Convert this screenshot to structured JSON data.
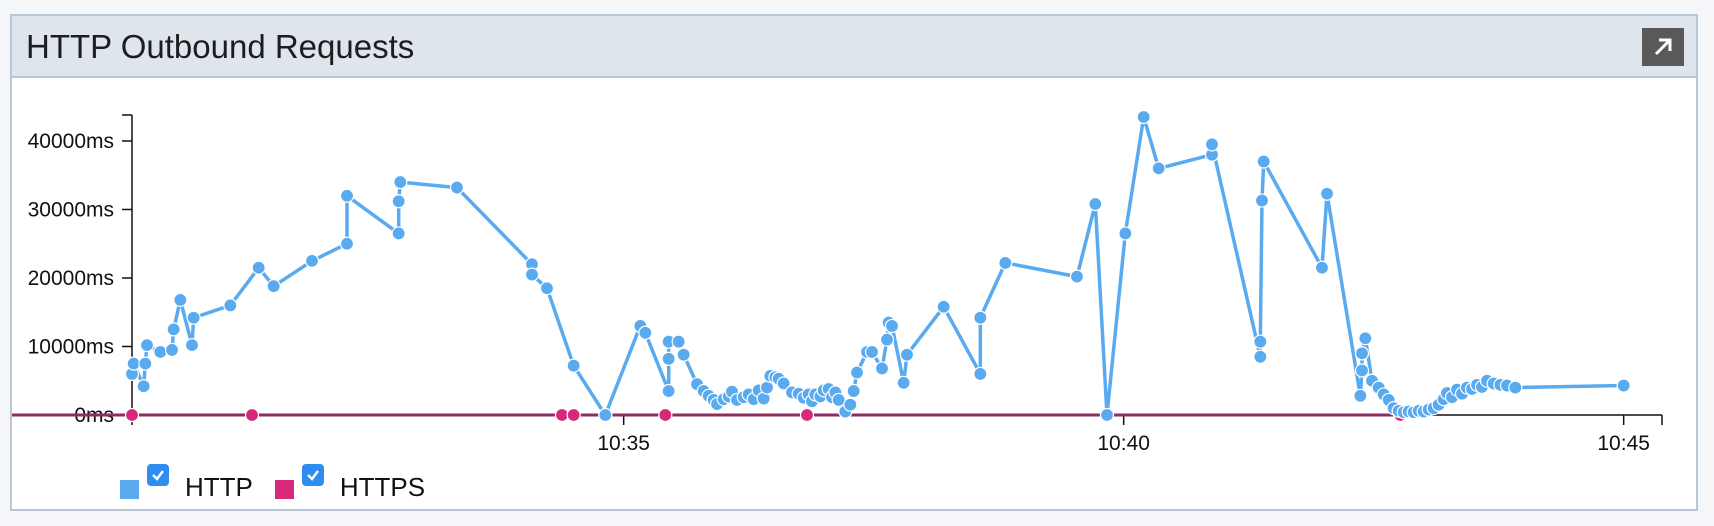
{
  "panel": {
    "title": "HTTP Outbound Requests",
    "expand_icon": "arrow-up-right-icon"
  },
  "chart_data": {
    "type": "scatter",
    "title": "HTTP Outbound Requests",
    "xlabel": "",
    "ylabel": "",
    "x_ticks": [
      "10:35",
      "10:40",
      "10:45"
    ],
    "y_ticks": [
      "0ms",
      "10000ms",
      "20000ms",
      "30000ms",
      "40000ms"
    ],
    "xlim": [
      "10:30:05",
      "10:45:23"
    ],
    "ylim": [
      0,
      43500
    ],
    "grid": false,
    "legend_position": "bottom-left",
    "series": [
      {
        "name": "HTTP",
        "color": "#5aaaf0",
        "points": [
          [
            "10:30:05",
            6000
          ],
          [
            "10:30:06",
            7500
          ],
          [
            "10:30:12",
            4200
          ],
          [
            "10:30:13",
            7500
          ],
          [
            "10:30:14",
            10200
          ],
          [
            "10:30:22",
            9200
          ],
          [
            "10:30:29",
            9500
          ],
          [
            "10:30:30",
            12500
          ],
          [
            "10:30:34",
            16800
          ],
          [
            "10:30:41",
            10200
          ],
          [
            "10:30:42",
            14200
          ],
          [
            "10:31:04",
            16000
          ],
          [
            "10:31:21",
            21500
          ],
          [
            "10:31:30",
            18800
          ],
          [
            "10:31:53",
            22500
          ],
          [
            "10:32:14",
            25000
          ],
          [
            "10:32:14",
            32000
          ],
          [
            "10:32:45",
            26500
          ],
          [
            "10:32:45",
            31200
          ],
          [
            "10:32:46",
            34000
          ],
          [
            "10:33:20",
            33200
          ],
          [
            "10:34:05",
            22000
          ],
          [
            "10:34:05",
            20500
          ],
          [
            "10:34:14",
            18500
          ],
          [
            "10:34:30",
            7200
          ],
          [
            "10:34:49",
            0
          ],
          [
            "10:35:10",
            13000
          ],
          [
            "10:35:13",
            12000
          ],
          [
            "10:35:27",
            3500
          ],
          [
            "10:35:27",
            8200
          ],
          [
            "10:35:27",
            10700
          ],
          [
            "10:35:33",
            10700
          ],
          [
            "10:35:36",
            8800
          ],
          [
            "10:35:44",
            4500
          ],
          [
            "10:35:48",
            3500
          ],
          [
            "10:35:51",
            2800
          ],
          [
            "10:35:54",
            2200
          ],
          [
            "10:35:56",
            1600
          ],
          [
            "10:36:00",
            2300
          ],
          [
            "10:36:03",
            2700
          ],
          [
            "10:36:05",
            3400
          ],
          [
            "10:36:08",
            2200
          ],
          [
            "10:36:12",
            2600
          ],
          [
            "10:36:15",
            3000
          ],
          [
            "10:36:18",
            2300
          ],
          [
            "10:36:21",
            3600
          ],
          [
            "10:36:24",
            2400
          ],
          [
            "10:36:26",
            4000
          ],
          [
            "10:36:28",
            5700
          ],
          [
            "10:36:31",
            5500
          ],
          [
            "10:36:33",
            5300
          ],
          [
            "10:36:36",
            4600
          ],
          [
            "10:36:41",
            3300
          ],
          [
            "10:36:45",
            3100
          ],
          [
            "10:36:48",
            2500
          ],
          [
            "10:36:51",
            3000
          ],
          [
            "10:36:53",
            2000
          ],
          [
            "10:36:55",
            3000
          ],
          [
            "10:36:58",
            2700
          ],
          [
            "10:37:00",
            3600
          ],
          [
            "10:37:03",
            3800
          ],
          [
            "10:37:05",
            2600
          ],
          [
            "10:37:07",
            3300
          ],
          [
            "10:37:09",
            2200
          ],
          [
            "10:37:13",
            500
          ],
          [
            "10:37:16",
            1500
          ],
          [
            "10:37:18",
            3500
          ],
          [
            "10:37:20",
            6200
          ],
          [
            "10:37:26",
            9200
          ],
          [
            "10:37:29",
            9200
          ],
          [
            "10:37:35",
            6800
          ],
          [
            "10:37:38",
            11000
          ],
          [
            "10:37:39",
            13500
          ],
          [
            "10:37:41",
            13000
          ],
          [
            "10:37:48",
            4700
          ],
          [
            "10:37:50",
            8800
          ],
          [
            "10:38:12",
            15800
          ],
          [
            "10:38:34",
            6000
          ],
          [
            "10:38:34",
            14200
          ],
          [
            "10:38:49",
            22200
          ],
          [
            "10:39:32",
            20200
          ],
          [
            "10:39:43",
            30800
          ],
          [
            "10:39:50",
            0
          ],
          [
            "10:40:01",
            26500
          ],
          [
            "10:40:12",
            43500
          ],
          [
            "10:40:21",
            36000
          ],
          [
            "10:40:53",
            38000
          ],
          [
            "10:40:53",
            39500
          ],
          [
            "10:41:22",
            8500
          ],
          [
            "10:41:22",
            10700
          ],
          [
            "10:41:23",
            31300
          ],
          [
            "10:41:24",
            37000
          ],
          [
            "10:41:59",
            21500
          ],
          [
            "10:42:02",
            32300
          ],
          [
            "10:42:22",
            2800
          ],
          [
            "10:42:23",
            6500
          ],
          [
            "10:42:23",
            9000
          ],
          [
            "10:42:25",
            11200
          ],
          [
            "10:42:29",
            5000
          ],
          [
            "10:42:33",
            4000
          ],
          [
            "10:42:36",
            3000
          ],
          [
            "10:42:39",
            2200
          ],
          [
            "10:42:42",
            1000
          ],
          [
            "10:42:45",
            600
          ],
          [
            "10:42:48",
            400
          ],
          [
            "10:42:51",
            500
          ],
          [
            "10:42:54",
            400
          ],
          [
            "10:42:57",
            600
          ],
          [
            "10:43:00",
            500
          ],
          [
            "10:43:03",
            800
          ],
          [
            "10:43:06",
            1000
          ],
          [
            "10:43:09",
            1500
          ],
          [
            "10:43:12",
            2300
          ],
          [
            "10:43:14",
            3200
          ],
          [
            "10:43:17",
            2600
          ],
          [
            "10:43:20",
            3700
          ],
          [
            "10:43:23",
            3100
          ],
          [
            "10:43:26",
            4000
          ],
          [
            "10:43:29",
            3800
          ],
          [
            "10:43:32",
            4400
          ],
          [
            "10:43:35",
            4100
          ],
          [
            "10:43:38",
            5000
          ],
          [
            "10:43:42",
            4600
          ],
          [
            "10:43:46",
            4400
          ],
          [
            "10:43:50",
            4300
          ],
          [
            "10:43:55",
            4000
          ],
          [
            "10:45:00",
            4300
          ]
        ]
      },
      {
        "name": "HTTPS",
        "color": "#d9287a",
        "line_color": "#8e2b5f",
        "points": [
          [
            "10:30:05",
            0
          ],
          [
            "10:31:17",
            0
          ],
          [
            "10:34:23",
            0
          ],
          [
            "10:34:30",
            0
          ],
          [
            "10:34:49",
            0
          ],
          [
            "10:35:25",
            0
          ],
          [
            "10:36:50",
            0
          ],
          [
            "10:39:50",
            0
          ],
          [
            "10:42:46",
            0
          ]
        ]
      }
    ]
  },
  "legend": {
    "items": [
      {
        "label": "HTTP",
        "color": "#5aaaf0",
        "checked": true,
        "check_icon": "checkmark-icon"
      },
      {
        "label": "HTTPS",
        "color": "#d9287a",
        "checked": true,
        "check_icon": "checkmark-icon"
      }
    ]
  }
}
